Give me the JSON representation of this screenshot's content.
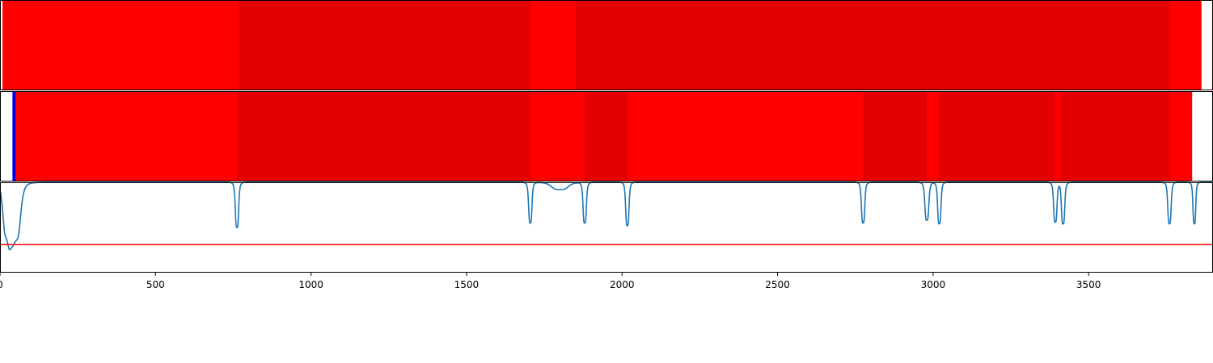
{
  "chart_data": [
    {
      "type": "heatmap",
      "xlim": [
        0,
        3900
      ],
      "colormap": "seismic",
      "segments": [
        {
          "x0": 0,
          "x1": 8,
          "value": 0.0
        },
        {
          "x0": 8,
          "x1": 768,
          "value": 0.5
        },
        {
          "x0": 768,
          "x1": 1705,
          "value": 0.61
        },
        {
          "x0": 1705,
          "x1": 1850,
          "value": 0.5
        },
        {
          "x0": 1850,
          "x1": 3760,
          "value": 0.61
        },
        {
          "x0": 3760,
          "x1": 3863,
          "value": 0.5
        },
        {
          "x0": 3863,
          "x1": 3900,
          "value": 0.0
        }
      ]
    },
    {
      "type": "heatmap",
      "xlim": [
        0,
        3900
      ],
      "colormap": "seismic",
      "segments": [
        {
          "x0": 0,
          "x1": 40,
          "value": 0.0
        },
        {
          "x0": 40,
          "x1": 50,
          "value": -0.55
        },
        {
          "x0": 50,
          "x1": 762,
          "value": 0.5
        },
        {
          "x0": 762,
          "x1": 1705,
          "value": 0.61
        },
        {
          "x0": 1705,
          "x1": 1880,
          "value": 0.5
        },
        {
          "x0": 1880,
          "x1": 2017,
          "value": 0.61
        },
        {
          "x0": 2017,
          "x1": 2775,
          "value": 0.5
        },
        {
          "x0": 2775,
          "x1": 2980,
          "value": 0.61
        },
        {
          "x0": 2980,
          "x1": 3020,
          "value": 0.5
        },
        {
          "x0": 3020,
          "x1": 3390,
          "value": 0.61
        },
        {
          "x0": 3390,
          "x1": 3410,
          "value": 0.5
        },
        {
          "x0": 3410,
          "x1": 3760,
          "value": 0.61
        },
        {
          "x0": 3760,
          "x1": 3833,
          "value": 0.5
        },
        {
          "x0": 3833,
          "x1": 3900,
          "value": 0.0
        }
      ]
    },
    {
      "type": "line",
      "xlim": [
        0,
        3900
      ],
      "ylim": [
        0,
        1
      ],
      "xticks": [
        "0",
        "500",
        "1000",
        "1500",
        "2000",
        "2500",
        "3000",
        "3500"
      ],
      "xtick_values": [
        0,
        500,
        1000,
        1500,
        2000,
        2500,
        3000,
        3500
      ],
      "baseline": 1.0,
      "line_color": "#1f77b4",
      "threshold": {
        "y": 0.31,
        "color": "#ff0000"
      },
      "dips": [
        {
          "x": 22,
          "depth": 0.55,
          "width": 14
        },
        {
          "x": 50,
          "depth": 0.62,
          "width": 18
        },
        {
          "x": 762,
          "depth": 0.5,
          "width": 6
        },
        {
          "x": 1705,
          "depth": 0.45,
          "width": 6
        },
        {
          "x": 1800,
          "depth": 0.08,
          "width": 30
        },
        {
          "x": 1880,
          "depth": 0.45,
          "width": 6
        },
        {
          "x": 2017,
          "depth": 0.48,
          "width": 6
        },
        {
          "x": 2775,
          "depth": 0.45,
          "width": 6
        },
        {
          "x": 2980,
          "depth": 0.42,
          "width": 7
        },
        {
          "x": 3020,
          "depth": 0.46,
          "width": 6
        },
        {
          "x": 3393,
          "depth": 0.44,
          "width": 6
        },
        {
          "x": 3418,
          "depth": 0.46,
          "width": 6
        },
        {
          "x": 3760,
          "depth": 0.46,
          "width": 6
        },
        {
          "x": 3840,
          "depth": 0.46,
          "width": 5
        }
      ]
    }
  ]
}
